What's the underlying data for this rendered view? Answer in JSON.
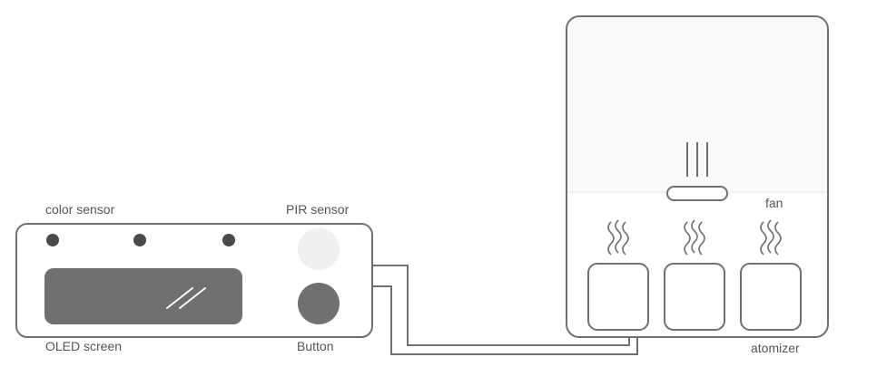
{
  "labels": {
    "color_sensor": "color sensor",
    "pir_sensor": "PIR sensor",
    "oled_screen": "OLED screen",
    "button": "Button",
    "fan": "fan",
    "atomizer": "atomizer"
  },
  "colors": {
    "stroke": "#707070",
    "led": "#4a4a4a",
    "oled": "#6f6f6f",
    "button": "#707070",
    "pir": "#f0f0f0",
    "tank_top": "#fafafa",
    "text": "#555555"
  }
}
